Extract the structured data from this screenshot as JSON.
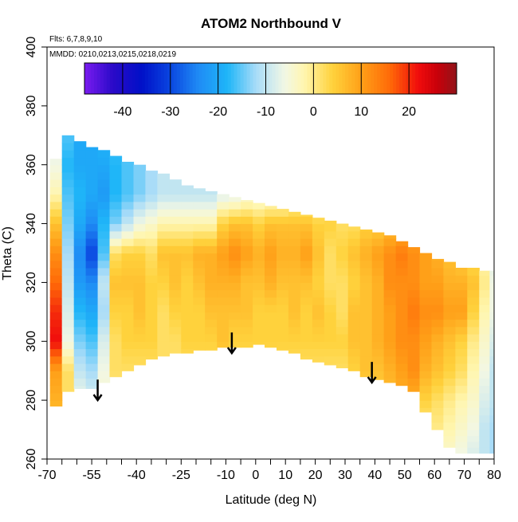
{
  "chart_data": {
    "type": "heatmap",
    "title": "ATOM2 Northbound V",
    "flights_label": "Flts: 6,7,8,9,10",
    "dates_label": "MMDD: 0210,0213,0215,0218,0219",
    "xlabel": "Latitude (deg N)",
    "ylabel": "Theta (C)",
    "xlim": [
      -70,
      80
    ],
    "ylim": [
      260,
      400
    ],
    "x_ticks": [
      -70,
      -55,
      -40,
      -25,
      -10,
      0,
      10,
      20,
      30,
      40,
      50,
      60,
      70,
      80
    ],
    "x_minor_ticks": [
      -65,
      -60,
      -50,
      -45,
      -35,
      -30,
      -20,
      -15,
      -5,
      5,
      15,
      25,
      35,
      45,
      55,
      65,
      75
    ],
    "y_ticks": [
      260,
      280,
      300,
      320,
      340,
      360,
      380,
      400
    ],
    "colorbar": {
      "min": -48,
      "max": 30,
      "ticks": [
        -40,
        -30,
        -20,
        -10,
        0,
        10,
        20
      ],
      "stops": [
        {
          "v": -48,
          "color": "#7a1cf0"
        },
        {
          "v": -42,
          "color": "#2a0ac8"
        },
        {
          "v": -36,
          "color": "#0010c8"
        },
        {
          "v": -30,
          "color": "#0a46e0"
        },
        {
          "v": -24,
          "color": "#1f8cf5"
        },
        {
          "v": -18,
          "color": "#1fb6f8"
        },
        {
          "v": -12,
          "color": "#a9dcf8"
        },
        {
          "v": -6,
          "color": "#f2f7e4"
        },
        {
          "v": -2,
          "color": "#fff6b0"
        },
        {
          "v": 4,
          "color": "#ffd23c"
        },
        {
          "v": 10,
          "color": "#ffa018"
        },
        {
          "v": 16,
          "color": "#ff6a08"
        },
        {
          "v": 22,
          "color": "#f00c0c"
        },
        {
          "v": 26,
          "color": "#c8000a"
        },
        {
          "v": 30,
          "color": "#90141a"
        }
      ]
    },
    "field": {
      "lat": [
        -67,
        -63,
        -59,
        -55,
        -51,
        -47,
        -43,
        -39,
        -35,
        -31,
        -27,
        -23,
        -19,
        -15,
        -11,
        -7,
        -3,
        1,
        5,
        9,
        13,
        17,
        21,
        25,
        29,
        33,
        37,
        41,
        45,
        49,
        53,
        57,
        61,
        65,
        69,
        73,
        77,
        80
      ],
      "theta_bottom": [
        278,
        283,
        284,
        284,
        286,
        288,
        290,
        292,
        294,
        295,
        296,
        296,
        297,
        297,
        298,
        298,
        298,
        299,
        298,
        297,
        296,
        294,
        293,
        292,
        291,
        290,
        288,
        287,
        286,
        285,
        283,
        276,
        270,
        264,
        262,
        262,
        262,
        262
      ],
      "theta_top": [
        362,
        370,
        368,
        366,
        365,
        363,
        361,
        360,
        358,
        357,
        355,
        353,
        352,
        351,
        350,
        349,
        348,
        347,
        346,
        345,
        344,
        343,
        342,
        341,
        340,
        339,
        338,
        337,
        336,
        334,
        332,
        330,
        328,
        327,
        325,
        325,
        324,
        324
      ],
      "theta_levels": [
        262,
        270,
        280,
        290,
        300,
        310,
        320,
        330,
        340,
        350,
        360,
        370
      ],
      "v": [
        [
          -4,
          4,
          8,
          10,
          22,
          20,
          16,
          12,
          6,
          -2,
          -6,
          -8
        ],
        [
          -8,
          -2,
          2,
          2,
          -6,
          -8,
          -10,
          -12,
          -14,
          -16,
          -18,
          -16
        ],
        [
          -10,
          -8,
          -6,
          -10,
          -14,
          -18,
          -22,
          -24,
          -20,
          -18,
          -20,
          -20
        ],
        [
          -10,
          -10,
          -8,
          -12,
          -16,
          -20,
          -24,
          -30,
          -24,
          -20,
          -20,
          -20
        ],
        [
          -6,
          -6,
          -4,
          -6,
          -8,
          -12,
          -10,
          -16,
          -18,
          -22,
          -20,
          -18
        ],
        [
          -4,
          -2,
          0,
          2,
          2,
          4,
          6,
          2,
          -14,
          -18,
          -18,
          -16
        ],
        [
          -4,
          -2,
          0,
          2,
          4,
          4,
          6,
          4,
          -10,
          -16,
          -16,
          -14
        ],
        [
          -4,
          -2,
          0,
          2,
          4,
          6,
          6,
          4,
          -6,
          -14,
          -14,
          -12
        ],
        [
          -4,
          -2,
          0,
          2,
          4,
          4,
          4,
          2,
          -4,
          -12,
          -12,
          -10
        ],
        [
          -4,
          -2,
          0,
          2,
          2,
          2,
          4,
          6,
          -2,
          -10,
          -10,
          -10
        ],
        [
          -4,
          -2,
          0,
          2,
          2,
          4,
          6,
          6,
          -2,
          -10,
          -10,
          -10
        ],
        [
          -4,
          -2,
          0,
          2,
          4,
          4,
          4,
          6,
          -2,
          -10,
          -10,
          -10
        ],
        [
          -4,
          -2,
          0,
          2,
          4,
          4,
          6,
          8,
          -2,
          -10,
          -10,
          -10
        ],
        [
          -4,
          -2,
          0,
          2,
          4,
          6,
          8,
          8,
          -2,
          -10,
          -10,
          -10
        ],
        [
          -4,
          -2,
          0,
          2,
          6,
          6,
          8,
          10,
          4,
          -8,
          -10,
          -10
        ],
        [
          -4,
          -2,
          0,
          2,
          4,
          6,
          8,
          12,
          6,
          -8,
          -8,
          -8
        ],
        [
          -4,
          -2,
          0,
          2,
          4,
          6,
          6,
          10,
          6,
          -6,
          -8,
          -8
        ],
        [
          -4,
          -2,
          0,
          2,
          4,
          4,
          6,
          8,
          4,
          -6,
          -8,
          -8
        ],
        [
          -4,
          -2,
          0,
          2,
          4,
          4,
          8,
          10,
          6,
          -6,
          -8,
          -8
        ],
        [
          -4,
          -2,
          0,
          2,
          4,
          4,
          6,
          8,
          6,
          -6,
          -8,
          -8
        ],
        [
          -4,
          -2,
          0,
          2,
          4,
          6,
          6,
          8,
          6,
          -4,
          -6,
          -6
        ],
        [
          -4,
          -2,
          0,
          2,
          4,
          4,
          6,
          10,
          6,
          -4,
          -6,
          -6
        ],
        [
          -4,
          -2,
          0,
          2,
          4,
          6,
          4,
          6,
          4,
          -4,
          -6,
          -6
        ],
        [
          -4,
          -2,
          0,
          2,
          4,
          4,
          2,
          2,
          4,
          -4,
          -6,
          -6
        ],
        [
          -4,
          -2,
          0,
          2,
          4,
          2,
          2,
          4,
          2,
          -4,
          -6,
          -6
        ],
        [
          -4,
          -2,
          2,
          4,
          6,
          6,
          4,
          6,
          2,
          -4,
          -6,
          -6
        ],
        [
          -4,
          -2,
          2,
          6,
          6,
          6,
          6,
          8,
          4,
          -4,
          -6,
          -6
        ],
        [
          -4,
          0,
          4,
          6,
          8,
          8,
          8,
          10,
          4,
          -4,
          -6,
          -6
        ],
        [
          -4,
          0,
          6,
          8,
          10,
          10,
          12,
          12,
          6,
          -4,
          -6,
          -6
        ],
        [
          -4,
          2,
          8,
          10,
          12,
          12,
          12,
          14,
          6,
          -4,
          -6,
          -6
        ],
        [
          -4,
          2,
          8,
          12,
          12,
          14,
          12,
          12,
          6,
          -4,
          -6,
          -6
        ],
        [
          -4,
          0,
          4,
          8,
          10,
          12,
          10,
          10,
          4,
          -4,
          -6,
          -6
        ],
        [
          -2,
          0,
          2,
          6,
          8,
          12,
          10,
          8,
          2,
          -4,
          -6,
          -6
        ],
        [
          -4,
          -2,
          0,
          4,
          6,
          10,
          8,
          6,
          0,
          -4,
          -6,
          -6
        ],
        [
          -6,
          -4,
          -2,
          2,
          4,
          10,
          8,
          4,
          -2,
          -4,
          -6,
          -6
        ],
        [
          -8,
          -6,
          -4,
          -2,
          0,
          4,
          6,
          2,
          -4,
          -6,
          -6,
          -6
        ],
        [
          -10,
          -10,
          -8,
          -6,
          -4,
          -2,
          0,
          -2,
          -6,
          -8,
          -8,
          -8
        ],
        [
          -12,
          -12,
          -10,
          -10,
          -8,
          -6,
          -6,
          -8,
          -10,
          -10,
          -10,
          -10
        ]
      ]
    },
    "arrows": [
      {
        "lat": -53,
        "theta_top": 287,
        "theta_bottom": 280
      },
      {
        "lat": -8,
        "theta_top": 303,
        "theta_bottom": 296
      },
      {
        "lat": 39,
        "theta_top": 293,
        "theta_bottom": 286
      }
    ]
  }
}
